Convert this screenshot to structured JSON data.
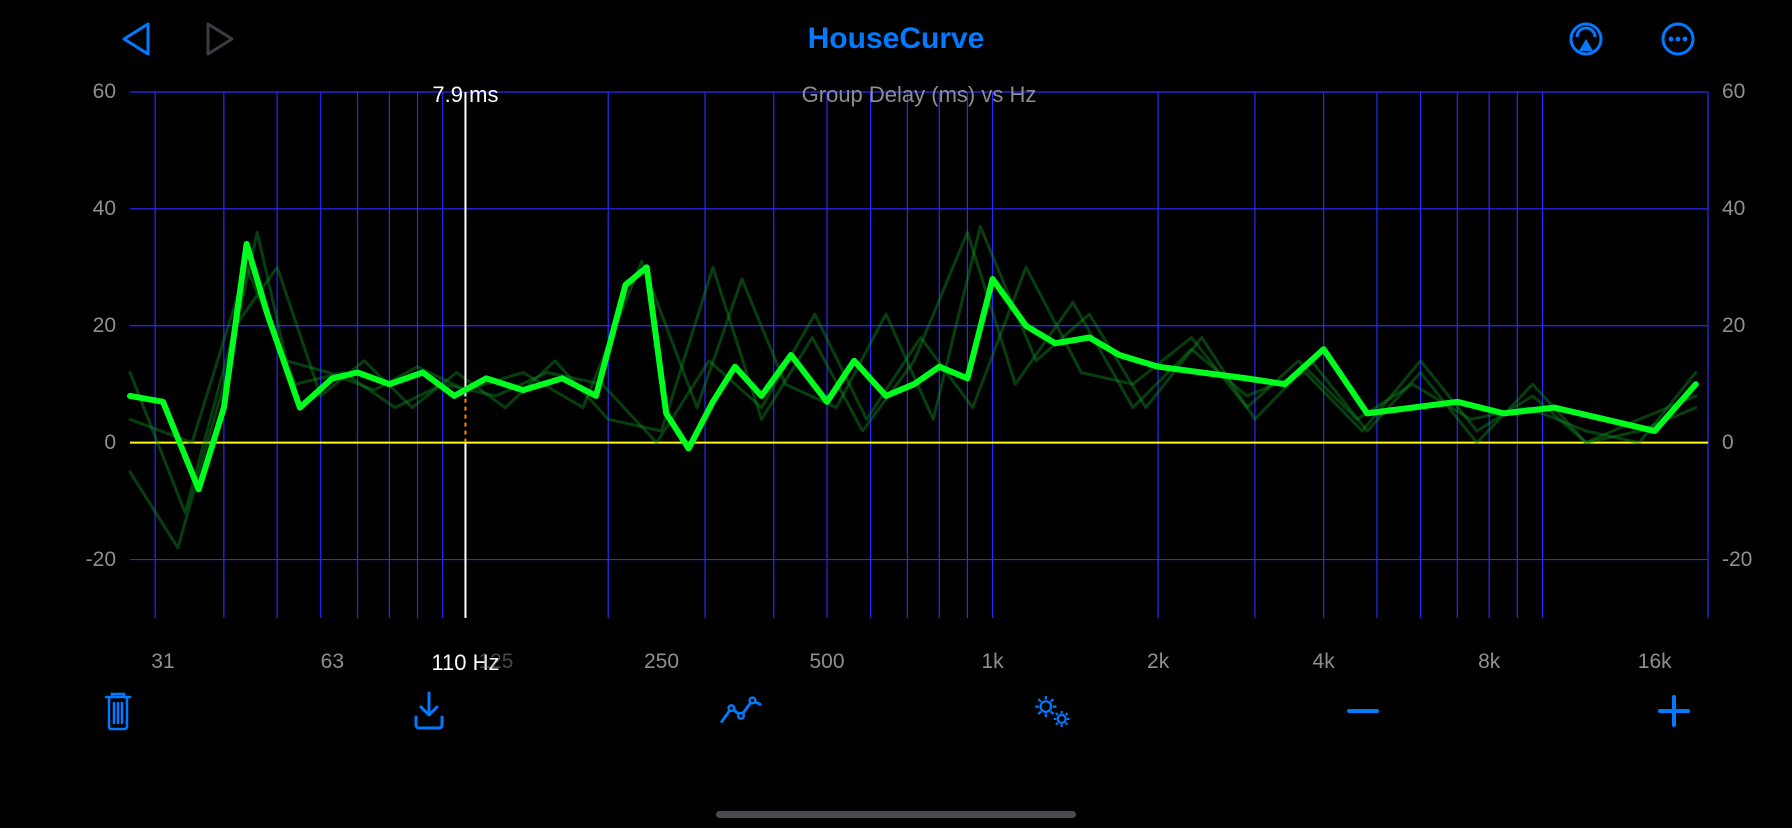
{
  "app": {
    "title": "HouseCurve"
  },
  "nav": {
    "back_enabled": true,
    "forward_enabled": false
  },
  "colors": {
    "bg": "#000000",
    "accent": "#007aff",
    "inactive": "#3c3c41",
    "axis_text": "#8e8e93",
    "grid_major": "#2929ff",
    "zero_line": "#ffff00",
    "cursor_line": "#ffffff",
    "cursor_dotted": "#ff8c00",
    "main_series": "#00ff1e",
    "faint_series": "#0f8a22"
  },
  "chart": {
    "type": "line",
    "title": "Group Delay (ms) vs Hz",
    "x": {
      "scale": "log",
      "min": 27,
      "max": 20000,
      "ticks": [
        31,
        63,
        125,
        250,
        500,
        1000,
        2000,
        4000,
        8000,
        16000
      ],
      "tick_labels": [
        "31",
        "63",
        "125",
        "250",
        "500",
        "1k",
        "2k",
        "4k",
        "8k",
        "16k"
      ]
    },
    "y": {
      "scale": "linear",
      "min": -30,
      "max": 60,
      "labeled_ticks": [
        -20,
        0,
        20,
        40,
        60
      ],
      "zero_reference": 0
    },
    "cursor": {
      "hz": 110,
      "hz_label": "110 Hz",
      "value_ms": 7.9,
      "value_label": "7.9 ms"
    },
    "main_series": {
      "linewidth": 6,
      "points_hz": [
        27,
        31,
        36,
        40,
        44,
        48,
        55,
        63,
        70,
        80,
        92,
        105,
        120,
        140,
        165,
        190,
        215,
        235,
        255,
        280,
        310,
        340,
        380,
        430,
        500,
        560,
        640,
        720,
        800,
        900,
        1000,
        1150,
        1300,
        1500,
        1700,
        2000,
        2400,
        2900,
        3400,
        4000,
        4800,
        5800,
        7000,
        8500,
        10500,
        13000,
        16000,
        19000
      ],
      "points_ms": [
        8,
        7,
        -8,
        6,
        34,
        22,
        6,
        11,
        12,
        10,
        12,
        8,
        11,
        9,
        11,
        8,
        27,
        30,
        5,
        -1,
        7,
        13,
        8,
        15,
        7,
        14,
        8,
        10,
        13,
        11,
        28,
        20,
        17,
        18,
        15,
        13,
        12,
        11,
        10,
        16,
        5,
        6,
        7,
        5,
        6,
        4,
        2,
        10
      ]
    },
    "faint_series": [
      {
        "points_hz": [
          27,
          33,
          40,
          46,
          52,
          62,
          75,
          90,
          110,
          140,
          180,
          230,
          290,
          350,
          420,
          520,
          640,
          780,
          950,
          1200,
          1500,
          1900,
          2400,
          3000,
          3800,
          4800,
          6000,
          7600,
          9600,
          12000,
          15000,
          19000
        ],
        "points_ms": [
          -5,
          -18,
          10,
          36,
          14,
          12,
          9,
          13,
          9,
          12,
          6,
          31,
          6,
          28,
          10,
          6,
          22,
          4,
          37,
          14,
          22,
          6,
          18,
          4,
          14,
          2,
          12,
          0,
          10,
          0,
          2,
          6
        ]
      },
      {
        "points_hz": [
          27,
          34,
          42,
          50,
          60,
          72,
          88,
          106,
          130,
          160,
          200,
          250,
          310,
          380,
          470,
          580,
          720,
          900,
          1100,
          1400,
          1800,
          2300,
          2900,
          3700,
          4700,
          6000,
          7600,
          9600,
          12000,
          15000,
          19000
        ],
        "points_ms": [
          12,
          -12,
          20,
          30,
          8,
          14,
          6,
          12,
          6,
          14,
          4,
          2,
          30,
          4,
          18,
          2,
          14,
          36,
          10,
          24,
          6,
          16,
          8,
          12,
          2,
          14,
          2,
          8,
          0,
          4,
          8
        ]
      },
      {
        "points_hz": [
          27,
          35,
          44,
          54,
          66,
          82,
          100,
          125,
          155,
          195,
          245,
          305,
          380,
          475,
          590,
          740,
          920,
          1150,
          1450,
          1800,
          2300,
          2900,
          3600,
          4600,
          5800,
          7400,
          9400,
          12000,
          15000,
          19000
        ],
        "points_ms": [
          4,
          0,
          30,
          10,
          12,
          6,
          10,
          8,
          12,
          10,
          0,
          14,
          6,
          22,
          4,
          18,
          6,
          30,
          12,
          10,
          18,
          6,
          14,
          4,
          10,
          4,
          6,
          2,
          0,
          12
        ]
      }
    ],
    "title_fontsize": 22,
    "axis_fontsize": 21,
    "faint_opacity": 0.45,
    "faint_linewidth": 3
  },
  "toolbar": {
    "items": [
      "trash",
      "save",
      "chart-mode",
      "settings",
      "minus",
      "plus"
    ]
  }
}
